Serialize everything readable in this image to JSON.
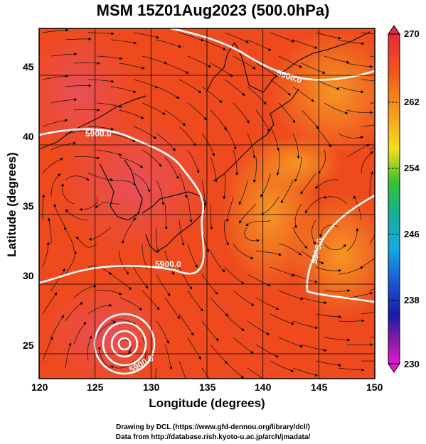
{
  "title": "MSM 15Z01Aug2023 (500.0hPa)",
  "map": {
    "xlabel": "Longitude (degrees)",
    "ylabel": "Latitude  (degrees)",
    "xlim": [
      120,
      150
    ],
    "ylim": [
      22.5,
      47.7
    ],
    "xticks": [
      "120",
      "125",
      "130",
      "135",
      "140",
      "145",
      "150"
    ],
    "yticks": [
      "25",
      "30",
      "35",
      "40",
      "45"
    ],
    "contour_label": "5900.0",
    "fill_colors": {
      "base": "#ee4a1e",
      "warm": "#f27a20",
      "cool_core": "#e94d5a",
      "coast": "#111111",
      "contour": "#ffffff",
      "grid": "#000000"
    }
  },
  "colorbar": {
    "min": 230,
    "max": 270,
    "tick_labels": [
      "270",
      "262",
      "254",
      "246",
      "238",
      "230"
    ]
  },
  "credits": {
    "line1": "Drawing by DCL (https://www.gfd-dennou.org/library/dcl/)",
    "line2": "Data from http://database.rish.kyoto-u.ac.jp/arch/jmadata/"
  }
}
